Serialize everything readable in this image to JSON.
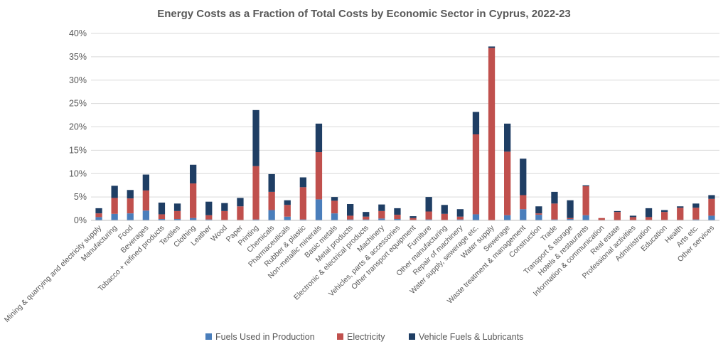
{
  "chart_data": {
    "type": "bar",
    "stacked": true,
    "title": "Energy Costs as a Fraction of Total Costs by Economic Sector in Cyprus, 2022-23",
    "xlabel": "",
    "ylabel": "",
    "ylim": [
      0,
      40
    ],
    "yticks": [
      "0%",
      "5%",
      "10%",
      "15%",
      "20%",
      "25%",
      "30%",
      "35%",
      "40%"
    ],
    "gridlines": true,
    "legend_position": "bottom",
    "categories": [
      "Mining & quarrying and electricity supply",
      "Manufacturing",
      "Food",
      "Beverages",
      "Tobacco + refined products",
      "Textiles",
      "Clothing",
      "Leather",
      "Wood",
      "Paper",
      "Printing",
      "Chemicals",
      "Pharmaceuticals",
      "Rubber & plastic",
      "Non-metallic minerals",
      "Basic metals",
      "Metal products",
      "Electronic & electrical products",
      "Machinery",
      "Vehicles, parts & accessories",
      "Other transport equipment",
      "Furniture",
      "Other manufacturing",
      "Repair of machinery",
      "Water supply, sewerage etc.",
      "Water supply",
      "Sewerage",
      "Waste treatment & management",
      "Construction",
      "Trade",
      "Transport & storage",
      "Hotels & restaurants",
      "Information & communication",
      "Real estate",
      "Professional activities",
      "Administration",
      "Education",
      "Health",
      "Arts etc.",
      "Other services"
    ],
    "series": [
      {
        "name": "Fuels Used in Production",
        "color": "#4a7ebb",
        "values": [
          0.7,
          1.4,
          1.5,
          2.1,
          0.3,
          0.3,
          0.5,
          0.2,
          0.1,
          0.1,
          0.2,
          2.2,
          0.8,
          0.2,
          4.5,
          1.5,
          0.2,
          0.2,
          0.4,
          0.3,
          0.1,
          0.2,
          0.1,
          0.2,
          1.3,
          0.0,
          1.1,
          2.4,
          1.2,
          0.2,
          0.3,
          1.1,
          0.0,
          0.0,
          0.0,
          0.1,
          0.1,
          0.1,
          0.2,
          1.0
        ]
      },
      {
        "name": "Electricity",
        "color": "#c0504d",
        "values": [
          0.8,
          3.4,
          3.2,
          4.3,
          1.0,
          1.7,
          7.4,
          0.9,
          1.9,
          2.9,
          11.4,
          3.9,
          2.5,
          6.9,
          10.1,
          2.7,
          0.8,
          0.6,
          1.6,
          0.9,
          0.4,
          1.7,
          1.3,
          0.6,
          17.1,
          36.9,
          13.6,
          3.0,
          0.3,
          3.4,
          0.2,
          6.2,
          0.5,
          1.8,
          0.7,
          0.6,
          1.7,
          2.6,
          2.5,
          3.6
        ]
      },
      {
        "name": "Vehicle Fuels & Lubricants",
        "color": "#1f3e64",
        "values": [
          1.1,
          2.6,
          1.8,
          3.4,
          2.5,
          1.6,
          4.0,
          2.9,
          1.7,
          1.8,
          12.0,
          3.8,
          1.0,
          2.1,
          6.1,
          0.8,
          2.5,
          1.0,
          1.4,
          1.4,
          0.4,
          3.1,
          1.9,
          1.6,
          4.8,
          0.3,
          6.0,
          7.8,
          1.5,
          2.5,
          3.8,
          0.2,
          0.0,
          0.2,
          0.3,
          1.9,
          0.4,
          0.3,
          0.9,
          0.8
        ]
      }
    ]
  }
}
